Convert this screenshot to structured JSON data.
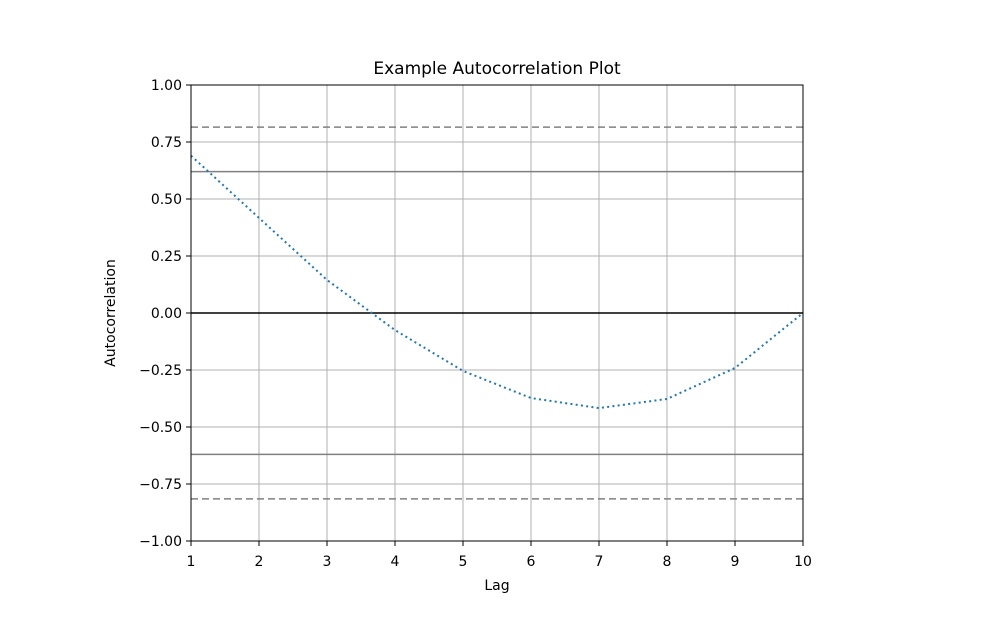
{
  "chart_data": {
    "type": "line",
    "title": "Example Autocorrelation Plot",
    "x_label": "Lag",
    "y_label": "Autocorrelation",
    "x": [
      1,
      2,
      3,
      4,
      5,
      6,
      7,
      8,
      9,
      10
    ],
    "values": [
      0.69,
      0.417,
      0.145,
      -0.075,
      -0.254,
      -0.373,
      -0.417,
      -0.377,
      -0.241,
      0.0
    ],
    "color": "#1f77b4",
    "line_style": "dotted",
    "xlim": [
      1,
      10
    ],
    "xticks": [
      1,
      2,
      3,
      4,
      5,
      6,
      7,
      8,
      9,
      10
    ],
    "ylim": [
      -1,
      1
    ],
    "yticks": [
      {
        "value": -1,
        "label": "−1.00"
      },
      {
        "value": -0.75,
        "label": "−0.75"
      },
      {
        "value": -0.5,
        "label": "−0.50"
      },
      {
        "value": -0.25,
        "label": "−0.25"
      },
      {
        "value": 0,
        "label": "0.00"
      },
      {
        "value": 0.25,
        "label": "0.25"
      },
      {
        "value": 0.5,
        "label": "0.50"
      },
      {
        "value": 0.75,
        "label": "0.75"
      },
      {
        "value": 1,
        "label": "1.00"
      }
    ],
    "grid": true,
    "reference_lines": [
      {
        "value": 0,
        "style": "solid",
        "color": "#000000"
      },
      {
        "value": 0.62,
        "style": "solid",
        "color": "#808080"
      },
      {
        "value": -0.62,
        "style": "solid",
        "color": "#808080"
      },
      {
        "value": 0.815,
        "style": "dashed",
        "color": "#808080"
      },
      {
        "value": -0.815,
        "style": "dashed",
        "color": "#808080"
      }
    ]
  }
}
